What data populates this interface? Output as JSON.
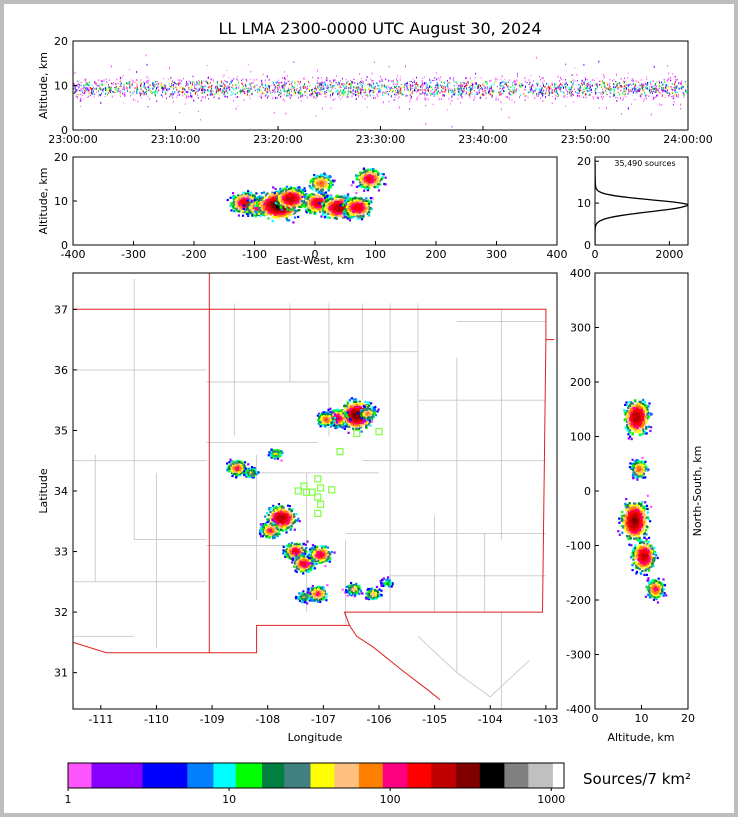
{
  "title": "LL LMA 2300-0000 UTC August 30, 2024",
  "colors": {
    "state_border": "#e02020",
    "county_lines": "#c8c8c8",
    "station_marker": "#7fff3f",
    "frame": "#bdbdbd"
  },
  "chart_data": [
    {
      "id": "time_altitude",
      "type": "heatmap",
      "ylabel": "Altitude, km",
      "ylim": [
        0,
        20
      ],
      "yticks": [
        0,
        10,
        20
      ],
      "xlim_minutes": [
        0,
        60
      ],
      "xtick_labels": [
        "23:00:00",
        "23:10:00",
        "23:20:00",
        "23:30:00",
        "23:40:00",
        "23:50:00",
        "24:00:00"
      ],
      "center_altitude_km": 9.5
    },
    {
      "id": "ew_altitude",
      "type": "heatmap",
      "xlabel": "East-West, km",
      "ylabel": "Altitude, km",
      "xlim": [
        -400,
        400
      ],
      "xticks": [
        -400,
        -300,
        -200,
        -100,
        0,
        100,
        200,
        300,
        400
      ],
      "ylim": [
        0,
        20
      ],
      "yticks": [
        0,
        10,
        20
      ],
      "clusters": [
        {
          "x": -115,
          "z": 9.5,
          "w": 10
        },
        {
          "x": -95,
          "z": 8.5,
          "w": 6
        },
        {
          "x": -60,
          "z": 9.0,
          "w": 22
        },
        {
          "x": -40,
          "z": 10.5,
          "w": 12
        },
        {
          "x": 5,
          "z": 9.5,
          "w": 10
        },
        {
          "x": 10,
          "z": 14.0,
          "w": 5
        },
        {
          "x": 40,
          "z": 8.5,
          "w": 14
        },
        {
          "x": 70,
          "z": 8.5,
          "w": 10
        },
        {
          "x": 90,
          "z": 15.0,
          "w": 8
        }
      ]
    },
    {
      "id": "altitude_histogram",
      "type": "line",
      "annotation": "35,490 sources",
      "xlim": [
        0,
        2500
      ],
      "xticks": [
        0,
        2000
      ],
      "ylim": [
        0,
        21
      ],
      "yticks": [
        0,
        10,
        20
      ],
      "peak_altitude_km": 9.5,
      "peak_count": 2450
    },
    {
      "id": "plan_view",
      "type": "heatmap",
      "xlabel": "Longitude",
      "ylabel": "Latitude",
      "xlim": [
        -111.5,
        -102.8
      ],
      "xticks": [
        -111,
        -110,
        -109,
        -108,
        -107,
        -106,
        -105,
        -104,
        -103
      ],
      "ylim": [
        30.4,
        37.6
      ],
      "yticks": [
        31,
        32,
        33,
        34,
        35,
        36,
        37
      ],
      "stations": [
        [
          -106.4,
          34.95
        ],
        [
          -106.0,
          34.98
        ],
        [
          -106.7,
          34.65
        ],
        [
          -107.1,
          34.2
        ],
        [
          -107.35,
          34.08
        ],
        [
          -107.45,
          34.0
        ],
        [
          -107.3,
          33.98
        ],
        [
          -107.2,
          33.98
        ],
        [
          -107.05,
          34.05
        ],
        [
          -106.85,
          34.02
        ],
        [
          -107.1,
          33.9
        ],
        [
          -107.05,
          33.78
        ],
        [
          -107.1,
          33.63
        ]
      ],
      "clusters": [
        {
          "lon": -106.4,
          "lat": 35.25,
          "w": 18
        },
        {
          "lon": -106.75,
          "lat": 35.2,
          "w": 8
        },
        {
          "lon": -106.95,
          "lat": 35.18,
          "w": 5
        },
        {
          "lon": -106.2,
          "lat": 35.28,
          "w": 4
        },
        {
          "lon": -108.55,
          "lat": 34.38,
          "w": 6
        },
        {
          "lon": -108.3,
          "lat": 34.3,
          "w": 2
        },
        {
          "lon": -107.85,
          "lat": 34.62,
          "w": 2
        },
        {
          "lon": -107.75,
          "lat": 33.55,
          "w": 14
        },
        {
          "lon": -107.95,
          "lat": 33.35,
          "w": 6
        },
        {
          "lon": -107.5,
          "lat": 33.0,
          "w": 8
        },
        {
          "lon": -107.35,
          "lat": 32.8,
          "w": 8
        },
        {
          "lon": -107.05,
          "lat": 32.95,
          "w": 8
        },
        {
          "lon": -107.1,
          "lat": 32.3,
          "w": 6
        },
        {
          "lon": -107.35,
          "lat": 32.25,
          "w": 2
        },
        {
          "lon": -106.45,
          "lat": 32.38,
          "w": 3
        },
        {
          "lon": -106.1,
          "lat": 32.3,
          "w": 3
        },
        {
          "lon": -105.85,
          "lat": 32.48,
          "w": 1
        }
      ]
    },
    {
      "id": "ns_altitude",
      "type": "heatmap",
      "xlabel": "Altitude, km",
      "ylabel": "North-South, km",
      "xlim": [
        0,
        20
      ],
      "xticks": [
        0,
        10,
        20
      ],
      "ylim": [
        -400,
        400
      ],
      "yticks": [
        -400,
        -300,
        -200,
        -100,
        0,
        100,
        200,
        300,
        400
      ],
      "clusters": [
        {
          "y": 135,
          "z": 9.0,
          "w": 14
        },
        {
          "y": 40,
          "z": 9.5,
          "w": 5
        },
        {
          "y": -55,
          "z": 8.5,
          "w": 16
        },
        {
          "y": -120,
          "z": 10.5,
          "w": 12
        },
        {
          "y": -180,
          "z": 13.0,
          "w": 6
        }
      ]
    }
  ],
  "colorbar": {
    "label": "Sources/7 km²",
    "tick_labels": [
      "1",
      "10",
      "100",
      "1000"
    ],
    "tick_values": [
      1,
      10,
      100,
      1000
    ],
    "bins": [
      {
        "lo": 1.0,
        "hi": 1.4,
        "color": "#ff55ff"
      },
      {
        "lo": 1.4,
        "hi": 2.0,
        "color": "#8800ff"
      },
      {
        "lo": 2.0,
        "hi": 2.9,
        "color": "#8800ff"
      },
      {
        "lo": 2.9,
        "hi": 4.0,
        "color": "#0000ff"
      },
      {
        "lo": 4.0,
        "hi": 5.5,
        "color": "#0000ff"
      },
      {
        "lo": 5.5,
        "hi": 8.0,
        "color": "#0080ff"
      },
      {
        "lo": 8.0,
        "hi": 11.0,
        "color": "#00ffff"
      },
      {
        "lo": 11.0,
        "hi": 16.0,
        "color": "#00ff00"
      },
      {
        "lo": 16.0,
        "hi": 22.0,
        "color": "#008040"
      },
      {
        "lo": 22.0,
        "hi": 32.0,
        "color": "#408080"
      },
      {
        "lo": 32.0,
        "hi": 45.0,
        "color": "#ffff00"
      },
      {
        "lo": 45.0,
        "hi": 64.0,
        "color": "#ffc080"
      },
      {
        "lo": 64.0,
        "hi": 90.0,
        "color": "#ff8000"
      },
      {
        "lo": 90.0,
        "hi": 128.0,
        "color": "#ff0080"
      },
      {
        "lo": 128.0,
        "hi": 180.0,
        "color": "#ff0000"
      },
      {
        "lo": 180.0,
        "hi": 256.0,
        "color": "#c00000"
      },
      {
        "lo": 256.0,
        "hi": 360.0,
        "color": "#800000"
      },
      {
        "lo": 360.0,
        "hi": 512.0,
        "color": "#000000"
      },
      {
        "lo": 512.0,
        "hi": 720.0,
        "color": "#808080"
      },
      {
        "lo": 720.0,
        "hi": 1024.0,
        "color": "#c0c0c0"
      },
      {
        "lo": 1024.0,
        "hi": 1200.0,
        "color": "#ffffff"
      }
    ]
  }
}
